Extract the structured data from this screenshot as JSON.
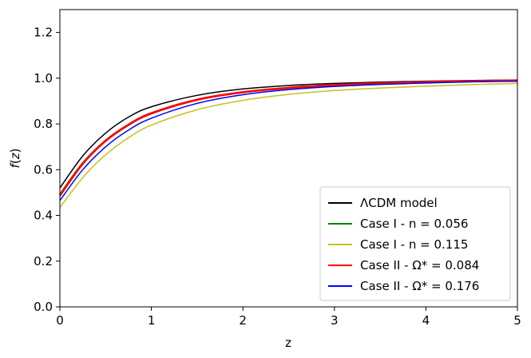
{
  "chart_data": {
    "type": "line",
    "xlabel": "z",
    "ylabel": "f(z)",
    "xlim": [
      0,
      5
    ],
    "ylim": [
      0.0,
      1.3
    ],
    "x_ticks": [
      "0",
      "1",
      "2",
      "3",
      "4",
      "5"
    ],
    "y_ticks": [
      "0.0",
      "0.2",
      "0.4",
      "0.6",
      "0.8",
      "1.0",
      "1.2"
    ],
    "grid": false,
    "legend_position": "lower-right",
    "x": [
      0,
      0.25,
      0.5,
      0.75,
      1,
      1.5,
      2,
      2.5,
      3,
      3.5,
      4,
      4.5,
      5
    ],
    "series": [
      {
        "name": "ΛCDM model",
        "color": "#000000",
        "values": [
          0.52,
          0.66,
          0.76,
          0.83,
          0.875,
          0.925,
          0.953,
          0.968,
          0.977,
          0.983,
          0.987,
          0.99,
          0.992
        ]
      },
      {
        "name": "Case I - n = 0.056",
        "color": "#008000",
        "values": [
          0.485,
          0.625,
          0.725,
          0.795,
          0.845,
          0.905,
          0.938,
          0.957,
          0.969,
          0.977,
          0.982,
          0.986,
          0.989
        ]
      },
      {
        "name": "Case I - n = 0.115",
        "color": "#c8c01a",
        "values": [
          0.435,
          0.565,
          0.665,
          0.74,
          0.795,
          0.862,
          0.903,
          0.929,
          0.946,
          0.957,
          0.965,
          0.972,
          0.977
        ]
      },
      {
        "name": "Case II - Ω* = 0.084",
        "color": "#ff0000",
        "values": [
          0.49,
          0.628,
          0.727,
          0.797,
          0.847,
          0.906,
          0.939,
          0.958,
          0.97,
          0.978,
          0.983,
          0.987,
          0.99
        ]
      },
      {
        "name": "Case II - Ω* = 0.176",
        "color": "#0000ff",
        "values": [
          0.465,
          0.6,
          0.7,
          0.773,
          0.825,
          0.89,
          0.928,
          0.95,
          0.964,
          0.973,
          0.979,
          0.984,
          0.987
        ]
      }
    ]
  }
}
